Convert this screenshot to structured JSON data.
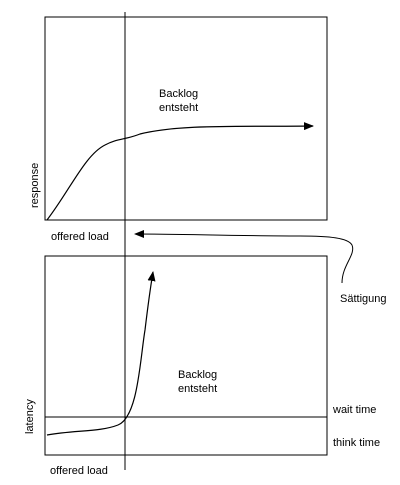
{
  "top_chart": {
    "ylabel": "response",
    "xlabel": "offered load",
    "annotation": [
      "Backlog",
      "entsteht"
    ]
  },
  "bottom_chart": {
    "ylabel": "latency",
    "xlabel": "offered load",
    "annotation": [
      "Backlog",
      "entsteht"
    ],
    "levels": {
      "wait": "wait time",
      "think": "think time"
    }
  },
  "feedback_label": "Sättigung"
}
